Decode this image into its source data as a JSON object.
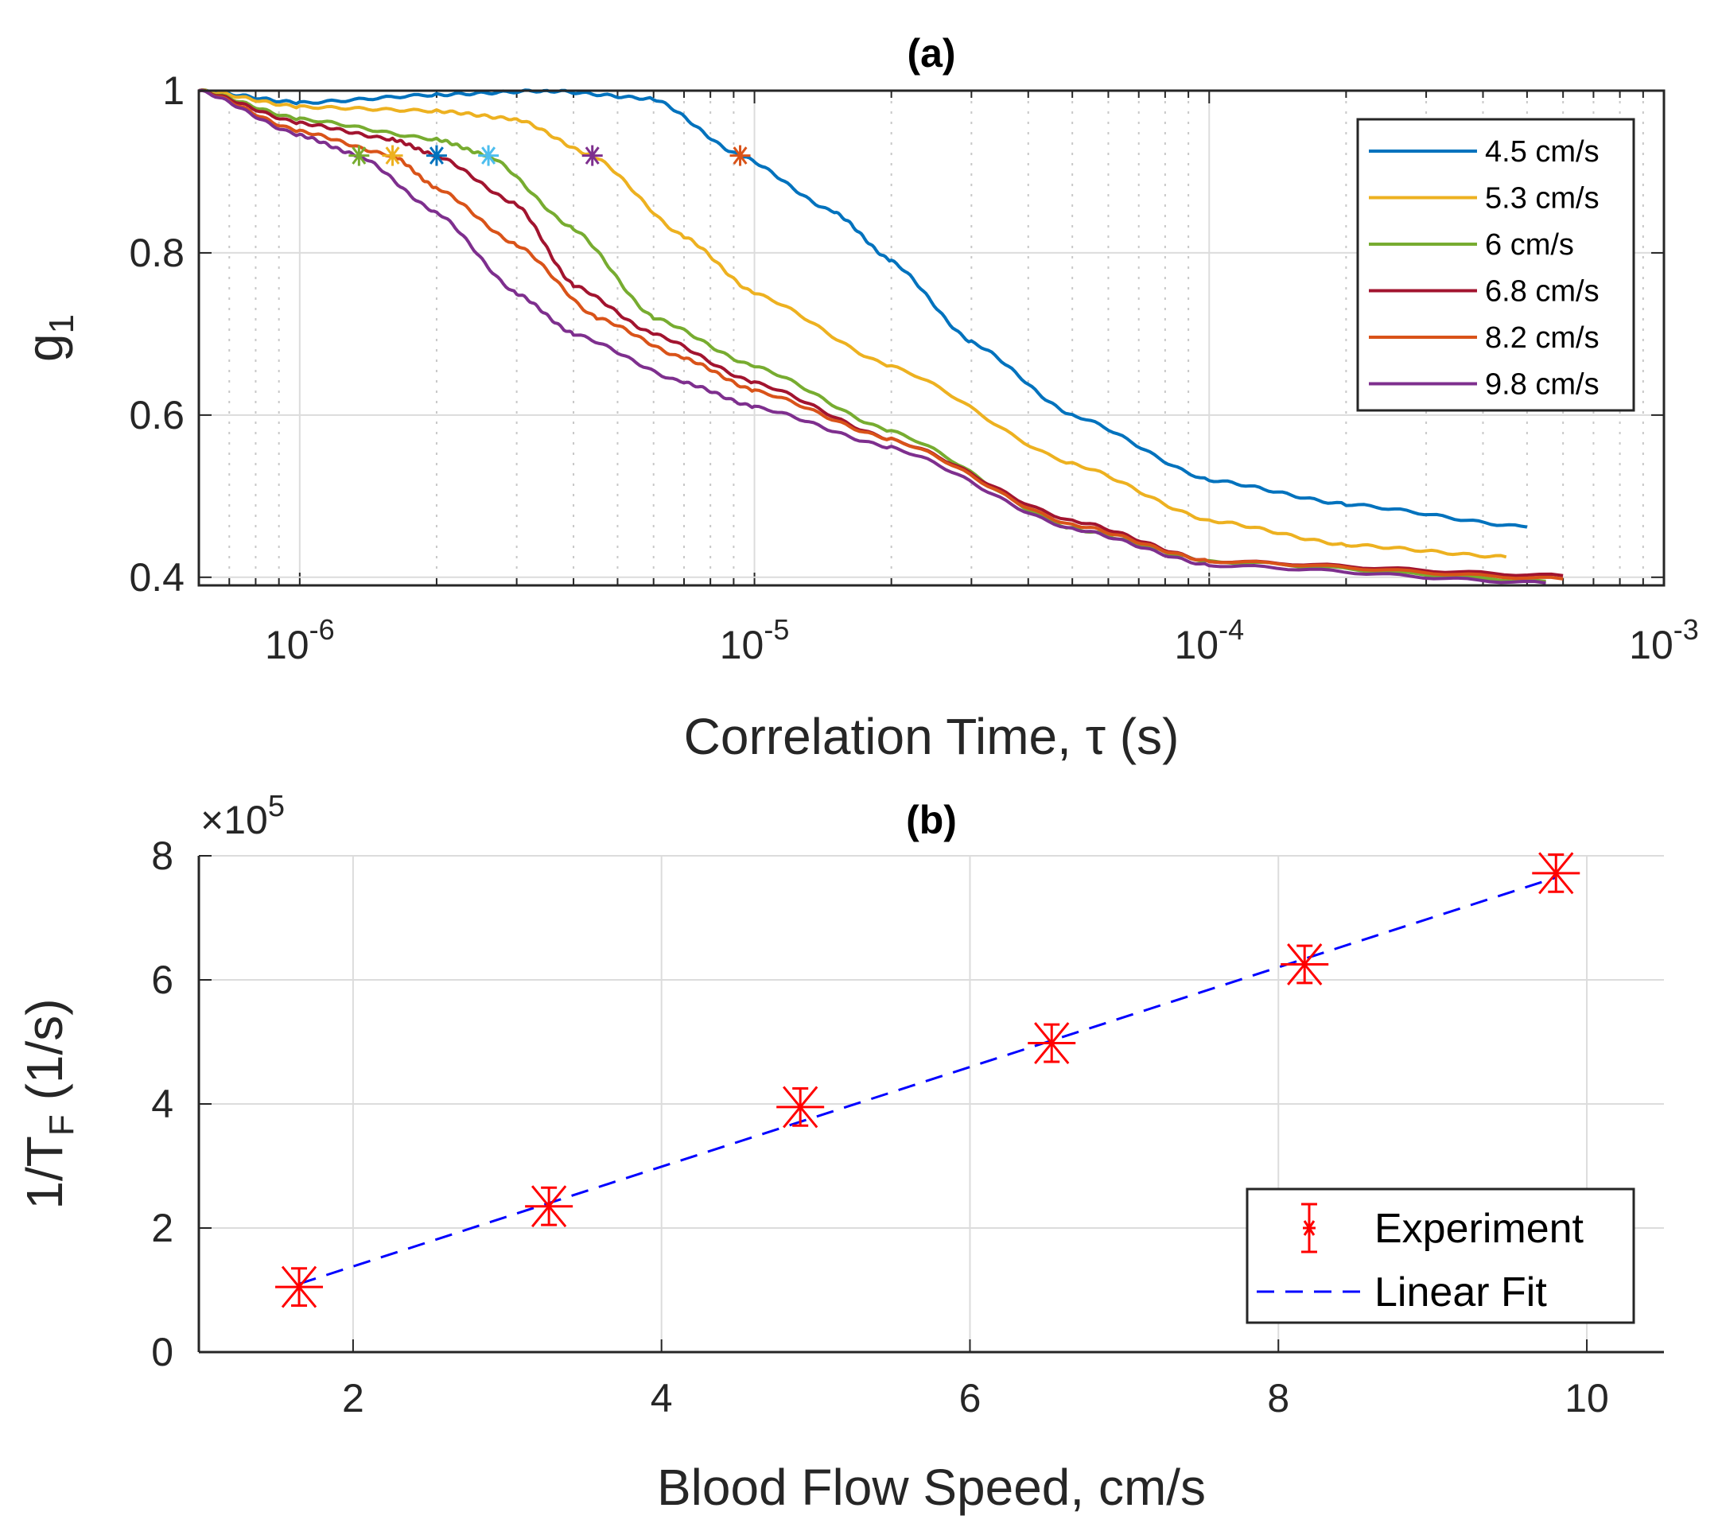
{
  "chart_data": [
    {
      "type": "line",
      "title": "(a)",
      "xlabel": "Correlation Time, τ (s)",
      "ylabel_base": "g",
      "ylabel_sub": "1",
      "xscale": "log",
      "xlim": [
        6e-07,
        0.001
      ],
      "ylim": [
        0.39,
        1
      ],
      "grid": true,
      "legend_placement": "top-right",
      "xticks": [
        {
          "base": "10",
          "exp": "-6",
          "v": 1e-06
        },
        {
          "base": "10",
          "exp": "-5",
          "v": 1e-05
        },
        {
          "base": "10",
          "exp": "-4",
          "v": 0.0001
        },
        {
          "base": "10",
          "exp": "-3",
          "v": 0.001
        }
      ],
      "yticks": [
        {
          "label": "0.4",
          "v": 0.4
        },
        {
          "label": "0.6",
          "v": 0.6
        },
        {
          "label": "0.8",
          "v": 0.8
        },
        {
          "label": "1",
          "v": 1
        }
      ],
      "series": [
        {
          "name": "4.5 cm/s",
          "color": "#0072BD",
          "points": [
            [
              6e-07,
              1
            ],
            [
              1e-06,
              0.985
            ],
            [
              2e-06,
              0.995
            ],
            [
              3.5e-06,
              1.0
            ],
            [
              6e-06,
              0.99
            ],
            [
              9.3e-06,
              0.92
            ],
            [
              1.5e-05,
              0.85
            ],
            [
              2e-05,
              0.79
            ],
            [
              3e-05,
              0.69
            ],
            [
              5e-05,
              0.6
            ],
            [
              0.0001,
              0.52
            ],
            [
              0.0002,
              0.49
            ],
            [
              0.0005,
              0.462
            ]
          ]
        },
        {
          "name": "5.3 cm/s",
          "color": "#EDB120",
          "points": [
            [
              6e-07,
              1
            ],
            [
              1e-06,
              0.98
            ],
            [
              2e-06,
              0.975
            ],
            [
              3e-06,
              0.965
            ],
            [
              4.4e-06,
              0.92
            ],
            [
              7e-06,
              0.82
            ],
            [
              1e-05,
              0.75
            ],
            [
              2e-05,
              0.66
            ],
            [
              5e-05,
              0.54
            ],
            [
              0.0001,
              0.47
            ],
            [
              0.0002,
              0.44
            ],
            [
              0.00045,
              0.425
            ]
          ]
        },
        {
          "name": "6 cm/s",
          "color": "#77AC30",
          "points": [
            [
              6e-07,
              1
            ],
            [
              1e-06,
              0.965
            ],
            [
              2e-06,
              0.94
            ],
            [
              2.6e-06,
              0.92
            ],
            [
              4e-06,
              0.83
            ],
            [
              6e-06,
              0.72
            ],
            [
              1e-05,
              0.66
            ],
            [
              2e-05,
              0.58
            ],
            [
              5e-05,
              0.46
            ],
            [
              0.0001,
              0.42
            ],
            [
              0.00055,
              0.395
            ]
          ]
        },
        {
          "name": "6.8 cm/s",
          "color": "#A2142F",
          "points": [
            [
              6e-07,
              1
            ],
            [
              1e-06,
              0.96
            ],
            [
              1.6e-06,
              0.94
            ],
            [
              2e-06,
              0.92
            ],
            [
              3e-06,
              0.86
            ],
            [
              4e-06,
              0.76
            ],
            [
              6e-06,
              0.7
            ],
            [
              1e-05,
              0.64
            ],
            [
              2e-05,
              0.57
            ],
            [
              5e-05,
              0.47
            ],
            [
              0.0001,
              0.42
            ],
            [
              0.0006,
              0.402
            ]
          ]
        },
        {
          "name": "8.2 cm/s",
          "color": "#D95319",
          "points": [
            [
              6e-07,
              1
            ],
            [
              1e-06,
              0.95
            ],
            [
              1.6e-06,
              0.92
            ],
            [
              2e-06,
              0.88
            ],
            [
              3e-06,
              0.81
            ],
            [
              4.5e-06,
              0.72
            ],
            [
              7e-06,
              0.67
            ],
            [
              1e-05,
              0.63
            ],
            [
              2e-05,
              0.57
            ],
            [
              5e-05,
              0.465
            ],
            [
              0.0001,
              0.42
            ],
            [
              0.0006,
              0.398
            ]
          ]
        },
        {
          "name": "9.8 cm/s",
          "color": "#7E2F8E",
          "points": [
            [
              6e-07,
              1
            ],
            [
              1e-06,
              0.945
            ],
            [
              1.35e-06,
              0.92
            ],
            [
              2e-06,
              0.85
            ],
            [
              3e-06,
              0.75
            ],
            [
              4e-06,
              0.7
            ],
            [
              7e-06,
              0.64
            ],
            [
              1e-05,
              0.61
            ],
            [
              2e-05,
              0.56
            ],
            [
              5e-05,
              0.46
            ],
            [
              0.0001,
              0.415
            ],
            [
              0.00055,
              0.393
            ]
          ]
        }
      ],
      "markers": [
        {
          "x": 1.35e-06,
          "y": 0.92,
          "color": "#77AC30"
        },
        {
          "x": 1.6e-06,
          "y": 0.92,
          "color": "#EDB120"
        },
        {
          "x": 2e-06,
          "y": 0.92,
          "color": "#0072BD"
        },
        {
          "x": 2.6e-06,
          "y": 0.92,
          "color": "#4DBEEE"
        },
        {
          "x": 4.4e-06,
          "y": 0.92,
          "color": "#7E2F8E"
        },
        {
          "x": 9.3e-06,
          "y": 0.92,
          "color": "#D95319"
        }
      ]
    },
    {
      "type": "scatter",
      "title": "(b)",
      "xlabel": "Blood Flow Speed, cm/s",
      "ylabel_pre": "1/T",
      "ylabel_sub": "F",
      "ylabel_post": " (1/s)",
      "exponent_prefix": "×10",
      "exponent": "5",
      "xlim": [
        1,
        10.5
      ],
      "ylim": [
        0,
        800000
      ],
      "grid": true,
      "legend_placement": "bottom-right",
      "xticks": [
        {
          "label": "2",
          "v": 2
        },
        {
          "label": "4",
          "v": 4
        },
        {
          "label": "6",
          "v": 6
        },
        {
          "label": "8",
          "v": 8
        },
        {
          "label": "10",
          "v": 10
        }
      ],
      "yticks": [
        {
          "label": "0",
          "v": 0
        },
        {
          "label": "2",
          "v": 200000
        },
        {
          "label": "4",
          "v": 400000
        },
        {
          "label": "6",
          "v": 600000
        },
        {
          "label": "8",
          "v": 800000
        }
      ],
      "experiment": {
        "name": "Experiment",
        "color": "#FF0000",
        "x": [
          1.65,
          3.27,
          4.9,
          6.53,
          8.17,
          9.8
        ],
        "y": [
          105000,
          235000,
          395000,
          498000,
          625000,
          772000
        ],
        "err": [
          30000,
          30000,
          30000,
          30000,
          30000,
          30000
        ]
      },
      "fit": {
        "name": "Linear Fit",
        "color": "#0000FF",
        "x": [
          1.65,
          9.8
        ],
        "y": [
          110000,
          765000
        ]
      }
    }
  ]
}
